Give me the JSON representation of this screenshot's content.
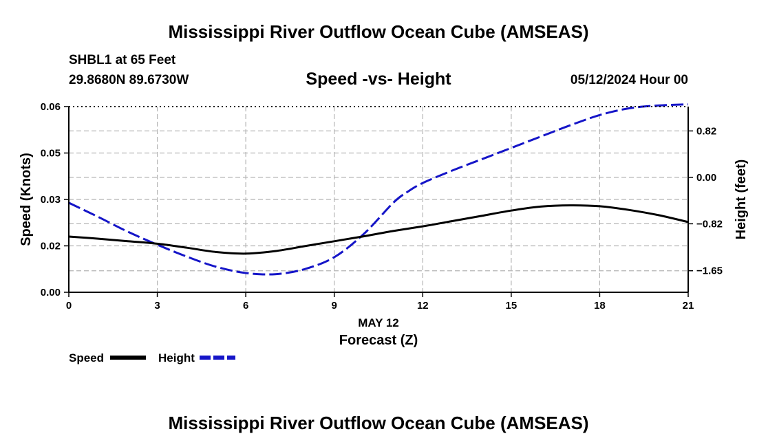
{
  "header": {
    "title": "Mississippi River Outflow Ocean Cube (AMSEAS)",
    "station": "SHBL1 at 65 Feet",
    "location": "29.8680N  89.6730W",
    "subtitle": "Speed -vs- Height",
    "datetime": "05/12/2024 Hour 00"
  },
  "footer": {
    "title": "Mississippi River Outflow Ocean Cube (AMSEAS)"
  },
  "colors": {
    "speed": "#000000",
    "height": "#1515c8",
    "grid": "#b4b4b4"
  },
  "chart_data": {
    "type": "line",
    "title": "Speed -vs- Height",
    "xlabel_date": "MAY 12",
    "xlabel": "Forecast (Z)",
    "ylabel": "Speed (Knots)",
    "y2label": "Height (feet)",
    "xlim": [
      0,
      21
    ],
    "ylim": [
      0,
      0.06
    ],
    "y2lim": [
      -2.03,
      1.25
    ],
    "x_ticks": [
      0,
      3,
      6,
      9,
      12,
      15,
      18,
      21
    ],
    "y_ticks": [
      "0.00",
      "0.02",
      "0.03",
      "0.05",
      "0.06"
    ],
    "y_tick_values": [
      0,
      0.015,
      0.03,
      0.045,
      0.06
    ],
    "y2_ticks": [
      "0.82",
      "0.00",
      "−0.82",
      "−1.65"
    ],
    "y2_tick_values": [
      0.82,
      0.0,
      -0.82,
      -1.65
    ],
    "grid": true,
    "legend_position": "bottom-left",
    "series": [
      {
        "name": "Speed",
        "axis": "left",
        "style": "solid",
        "x": [
          0,
          1,
          2,
          3,
          4,
          5,
          6,
          7,
          8,
          9,
          10,
          11,
          12,
          13,
          14,
          15,
          16,
          17,
          18,
          19,
          20,
          21
        ],
        "values": [
          0.018,
          0.0173,
          0.0165,
          0.0157,
          0.0144,
          0.013,
          0.0125,
          0.0133,
          0.0149,
          0.0165,
          0.0181,
          0.0198,
          0.0213,
          0.023,
          0.0247,
          0.0264,
          0.0277,
          0.0281,
          0.0278,
          0.0266,
          0.0249,
          0.0227
        ]
      },
      {
        "name": "Height",
        "axis": "right",
        "style": "dashed",
        "x": [
          0,
          1,
          2,
          3,
          4,
          5,
          6,
          7,
          8,
          9,
          10,
          11,
          11.5,
          12,
          13,
          14,
          15,
          16,
          17,
          18,
          19,
          20,
          21
        ],
        "values": [
          -0.45,
          -0.7,
          -0.96,
          -1.19,
          -1.4,
          -1.58,
          -1.69,
          -1.71,
          -1.62,
          -1.41,
          -1.0,
          -0.45,
          -0.25,
          -0.1,
          0.12,
          0.32,
          0.52,
          0.72,
          0.92,
          1.1,
          1.22,
          1.27,
          1.29
        ]
      }
    ]
  }
}
